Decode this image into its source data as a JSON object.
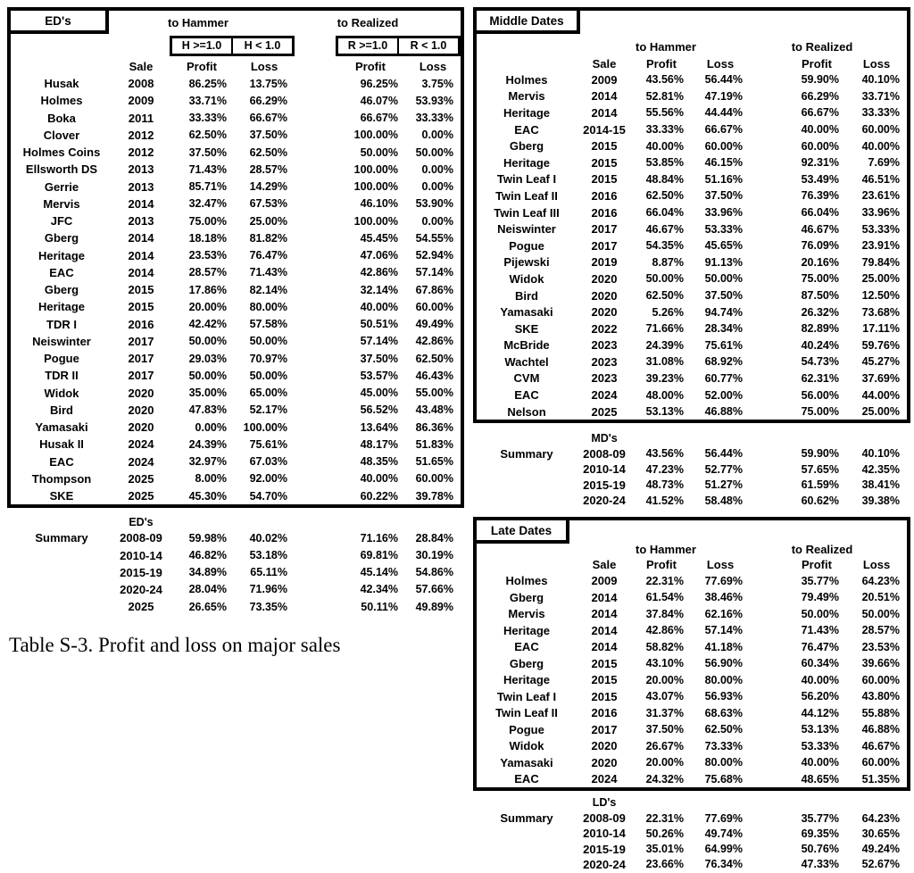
{
  "caption": "Table S-3. Profit and loss on major sales",
  "columns": {
    "sale": "Sale",
    "profit": "Profit",
    "loss": "Loss"
  },
  "tables": [
    {
      "title": "ED's",
      "hammer_label": "to Hammer",
      "realized_label": "to Realized",
      "hammer_sub": [
        "H >=1.0",
        "H < 1.0"
      ],
      "realized_sub": [
        "R >=1.0",
        "R < 1.0"
      ],
      "rows": [
        [
          "Husak",
          "2008",
          "86.25%",
          "13.75%",
          "96.25%",
          "3.75%"
        ],
        [
          "Holmes",
          "2009",
          "33.71%",
          "66.29%",
          "46.07%",
          "53.93%"
        ],
        [
          "Boka",
          "2011",
          "33.33%",
          "66.67%",
          "66.67%",
          "33.33%"
        ],
        [
          "Clover",
          "2012",
          "62.50%",
          "37.50%",
          "100.00%",
          "0.00%"
        ],
        [
          "Holmes Coins",
          "2012",
          "37.50%",
          "62.50%",
          "50.00%",
          "50.00%"
        ],
        [
          "Ellsworth DS",
          "2013",
          "71.43%",
          "28.57%",
          "100.00%",
          "0.00%"
        ],
        [
          "Gerrie",
          "2013",
          "85.71%",
          "14.29%",
          "100.00%",
          "0.00%"
        ],
        [
          "Mervis",
          "2014",
          "32.47%",
          "67.53%",
          "46.10%",
          "53.90%"
        ],
        [
          "JFC",
          "2013",
          "75.00%",
          "25.00%",
          "100.00%",
          "0.00%"
        ],
        [
          "Gberg",
          "2014",
          "18.18%",
          "81.82%",
          "45.45%",
          "54.55%"
        ],
        [
          "Heritage",
          "2014",
          "23.53%",
          "76.47%",
          "47.06%",
          "52.94%"
        ],
        [
          "EAC",
          "2014",
          "28.57%",
          "71.43%",
          "42.86%",
          "57.14%"
        ],
        [
          "Gberg",
          "2015",
          "17.86%",
          "82.14%",
          "32.14%",
          "67.86%"
        ],
        [
          "Heritage",
          "2015",
          "20.00%",
          "80.00%",
          "40.00%",
          "60.00%"
        ],
        [
          "TDR I",
          "2016",
          "42.42%",
          "57.58%",
          "50.51%",
          "49.49%"
        ],
        [
          "Neiswinter",
          "2017",
          "50.00%",
          "50.00%",
          "57.14%",
          "42.86%"
        ],
        [
          "Pogue",
          "2017",
          "29.03%",
          "70.97%",
          "37.50%",
          "62.50%"
        ],
        [
          "TDR II",
          "2017",
          "50.00%",
          "50.00%",
          "53.57%",
          "46.43%"
        ],
        [
          "Widok",
          "2020",
          "35.00%",
          "65.00%",
          "45.00%",
          "55.00%"
        ],
        [
          "Bird",
          "2020",
          "47.83%",
          "52.17%",
          "56.52%",
          "43.48%"
        ],
        [
          "Yamasaki",
          "2020",
          "0.00%",
          "100.00%",
          "13.64%",
          "86.36%"
        ],
        [
          "Husak II",
          "2024",
          "24.39%",
          "75.61%",
          "48.17%",
          "51.83%"
        ],
        [
          "EAC",
          "2024",
          "32.97%",
          "67.03%",
          "48.35%",
          "51.65%"
        ],
        [
          "Thompson",
          "2025",
          "8.00%",
          "92.00%",
          "40.00%",
          "60.00%"
        ],
        [
          "SKE",
          "2025",
          "45.30%",
          "54.70%",
          "60.22%",
          "39.78%"
        ]
      ],
      "summary_label": "ED's",
      "summary_title": "Summary",
      "summary_rows": [
        [
          "2008-09",
          "59.98%",
          "40.02%",
          "71.16%",
          "28.84%"
        ],
        [
          "2010-14",
          "46.82%",
          "53.18%",
          "69.81%",
          "30.19%"
        ],
        [
          "2015-19",
          "34.89%",
          "65.11%",
          "45.14%",
          "54.86%"
        ],
        [
          "2020-24",
          "28.04%",
          "71.96%",
          "42.34%",
          "57.66%"
        ],
        [
          "2025",
          "26.65%",
          "73.35%",
          "50.11%",
          "49.89%"
        ]
      ]
    },
    {
      "title": "Middle Dates",
      "hammer_label": "to Hammer",
      "realized_label": "to Realized",
      "rows": [
        [
          "Holmes",
          "2009",
          "43.56%",
          "56.44%",
          "59.90%",
          "40.10%"
        ],
        [
          "Mervis",
          "2014",
          "52.81%",
          "47.19%",
          "66.29%",
          "33.71%"
        ],
        [
          "Heritage",
          "2014",
          "55.56%",
          "44.44%",
          "66.67%",
          "33.33%"
        ],
        [
          "EAC",
          "2014-15",
          "33.33%",
          "66.67%",
          "40.00%",
          "60.00%"
        ],
        [
          "Gberg",
          "2015",
          "40.00%",
          "60.00%",
          "60.00%",
          "40.00%"
        ],
        [
          "Heritage",
          "2015",
          "53.85%",
          "46.15%",
          "92.31%",
          "7.69%"
        ],
        [
          "Twin Leaf I",
          "2015",
          "48.84%",
          "51.16%",
          "53.49%",
          "46.51%"
        ],
        [
          "Twin Leaf II",
          "2016",
          "62.50%",
          "37.50%",
          "76.39%",
          "23.61%"
        ],
        [
          "Twin Leaf III",
          "2016",
          "66.04%",
          "33.96%",
          "66.04%",
          "33.96%"
        ],
        [
          "Neiswinter",
          "2017",
          "46.67%",
          "53.33%",
          "46.67%",
          "53.33%"
        ],
        [
          "Pogue",
          "2017",
          "54.35%",
          "45.65%",
          "76.09%",
          "23.91%"
        ],
        [
          "Pijewski",
          "2019",
          "8.87%",
          "91.13%",
          "20.16%",
          "79.84%"
        ],
        [
          "Widok",
          "2020",
          "50.00%",
          "50.00%",
          "75.00%",
          "25.00%"
        ],
        [
          "Bird",
          "2020",
          "62.50%",
          "37.50%",
          "87.50%",
          "12.50%"
        ],
        [
          "Yamasaki",
          "2020",
          "5.26%",
          "94.74%",
          "26.32%",
          "73.68%"
        ],
        [
          "SKE",
          "2022",
          "71.66%",
          "28.34%",
          "82.89%",
          "17.11%"
        ],
        [
          "McBride",
          "2023",
          "24.39%",
          "75.61%",
          "40.24%",
          "59.76%"
        ],
        [
          "Wachtel",
          "2023",
          "31.08%",
          "68.92%",
          "54.73%",
          "45.27%"
        ],
        [
          "CVM",
          "2023",
          "39.23%",
          "60.77%",
          "62.31%",
          "37.69%"
        ],
        [
          "EAC",
          "2024",
          "48.00%",
          "52.00%",
          "56.00%",
          "44.00%"
        ],
        [
          "Nelson",
          "2025",
          "53.13%",
          "46.88%",
          "75.00%",
          "25.00%"
        ]
      ],
      "summary_label": "MD's",
      "summary_title": "Summary",
      "summary_rows": [
        [
          "2008-09",
          "43.56%",
          "56.44%",
          "59.90%",
          "40.10%"
        ],
        [
          "2010-14",
          "47.23%",
          "52.77%",
          "57.65%",
          "42.35%"
        ],
        [
          "2015-19",
          "48.73%",
          "51.27%",
          "61.59%",
          "38.41%"
        ],
        [
          "2020-24",
          "41.52%",
          "58.48%",
          "60.62%",
          "39.38%"
        ]
      ]
    },
    {
      "title": "Late Dates",
      "hammer_label": "to Hammer",
      "realized_label": "to Realized",
      "rows": [
        [
          "Holmes",
          "2009",
          "22.31%",
          "77.69%",
          "35.77%",
          "64.23%"
        ],
        [
          "Gberg",
          "2014",
          "61.54%",
          "38.46%",
          "79.49%",
          "20.51%"
        ],
        [
          "Mervis",
          "2014",
          "37.84%",
          "62.16%",
          "50.00%",
          "50.00%"
        ],
        [
          "Heritage",
          "2014",
          "42.86%",
          "57.14%",
          "71.43%",
          "28.57%"
        ],
        [
          "EAC",
          "2014",
          "58.82%",
          "41.18%",
          "76.47%",
          "23.53%"
        ],
        [
          "Gberg",
          "2015",
          "43.10%",
          "56.90%",
          "60.34%",
          "39.66%"
        ],
        [
          "Heritage",
          "2015",
          "20.00%",
          "80.00%",
          "40.00%",
          "60.00%"
        ],
        [
          "Twin Leaf I",
          "2015",
          "43.07%",
          "56.93%",
          "56.20%",
          "43.80%"
        ],
        [
          "Twin Leaf II",
          "2016",
          "31.37%",
          "68.63%",
          "44.12%",
          "55.88%"
        ],
        [
          "Pogue",
          "2017",
          "37.50%",
          "62.50%",
          "53.13%",
          "46.88%"
        ],
        [
          "Widok",
          "2020",
          "26.67%",
          "73.33%",
          "53.33%",
          "46.67%"
        ],
        [
          "Yamasaki",
          "2020",
          "20.00%",
          "80.00%",
          "40.00%",
          "60.00%"
        ],
        [
          "EAC",
          "2024",
          "24.32%",
          "75.68%",
          "48.65%",
          "51.35%"
        ]
      ],
      "summary_label": "LD's",
      "summary_title": "Summary",
      "summary_rows": [
        [
          "2008-09",
          "22.31%",
          "77.69%",
          "35.77%",
          "64.23%"
        ],
        [
          "2010-14",
          "50.26%",
          "49.74%",
          "69.35%",
          "30.65%"
        ],
        [
          "2015-19",
          "35.01%",
          "64.99%",
          "50.76%",
          "49.24%"
        ],
        [
          "2020-24",
          "23.66%",
          "76.34%",
          "47.33%",
          "52.67%"
        ]
      ]
    }
  ]
}
